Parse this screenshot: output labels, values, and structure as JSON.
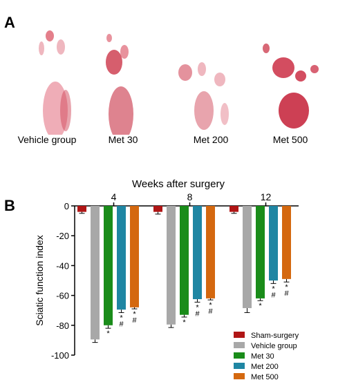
{
  "panel_a": {
    "label": "A",
    "captions": [
      "Vehicle group",
      "Met 30",
      "Met 200",
      "Met 500"
    ]
  },
  "panel_b": {
    "label": "B"
  },
  "chart_data": {
    "type": "bar",
    "title": "Weeks after surgery",
    "ylabel": "Sciatic function index",
    "xlabel": "",
    "categories": [
      "4",
      "8",
      "12"
    ],
    "ylim": [
      -100,
      0
    ],
    "yticks": [
      0,
      -20,
      -40,
      -60,
      -80,
      -100
    ],
    "x_axis_position": "top",
    "grid": false,
    "legend_position": "bottom-right",
    "series": [
      {
        "name": "Sham-surgery",
        "color": "#b01515",
        "values": [
          -4,
          -4,
          -4
        ],
        "errors": [
          1,
          1.5,
          1
        ],
        "marks": [
          "",
          "",
          ""
        ]
      },
      {
        "name": "Vehicle group",
        "color": "#a8a8a8",
        "values": [
          -89.5,
          -79.5,
          -68.5
        ],
        "errors": [
          2,
          2,
          3
        ],
        "marks": [
          "",
          "",
          ""
        ]
      },
      {
        "name": "Met 30",
        "color": "#1a8c1a",
        "values": [
          -80,
          -73,
          -62
        ],
        "errors": [
          2,
          1.5,
          1.5
        ],
        "marks": [
          "*",
          "*",
          "*"
        ]
      },
      {
        "name": "Met 200",
        "color": "#1f86a3",
        "values": [
          -69.5,
          -62.5,
          -50
        ],
        "errors": [
          2,
          2,
          2
        ],
        "marks": [
          "*\n#",
          "*\n#",
          "*\n#"
        ]
      },
      {
        "name": "Met 500",
        "color": "#d4680f",
        "values": [
          -68,
          -62,
          -49
        ],
        "errors": [
          1,
          1,
          2
        ],
        "marks": [
          "*\n#",
          "*\n#",
          "*\n#"
        ]
      }
    ]
  }
}
